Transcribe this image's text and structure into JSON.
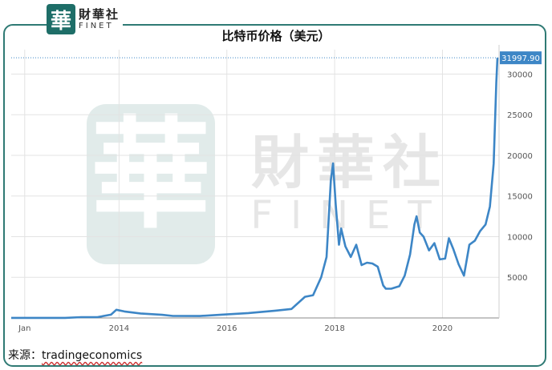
{
  "logo": {
    "mark": "華",
    "cn": "財華社",
    "en": "FINET"
  },
  "watermark": {
    "mark": "華",
    "cn": "財華社",
    "en": "FINET"
  },
  "source": {
    "label": "来源：",
    "value": "tradingeconomics"
  },
  "colors": {
    "line": "#3d86c6",
    "frame": "#2f7a74",
    "label_bg": "#3d86c6",
    "grid": "#e3e3e3"
  },
  "chart_data": {
    "type": "line",
    "title": "比特币价格（美元）",
    "xlabel": "",
    "ylabel": "",
    "x_ticks": [
      "Jan",
      "2014",
      "2016",
      "2018",
      "2020"
    ],
    "y_ticks": [
      5000,
      10000,
      15000,
      20000,
      25000,
      30000
    ],
    "ylim": [
      0,
      33000
    ],
    "last_value_label": "31997.90",
    "grid": true,
    "series": [
      {
        "x": [
          2012.0,
          2012.5,
          2013.0,
          2013.3,
          2013.6,
          2013.85,
          2013.95,
          2014.1,
          2014.4,
          2014.8,
          2015.0,
          2015.5,
          2015.9,
          2016.4,
          2016.9,
          2017.2,
          2017.45,
          2017.6,
          2017.75,
          2017.85,
          2017.93,
          2017.97,
          2018.02,
          2018.08,
          2018.12,
          2018.2,
          2018.3,
          2018.4,
          2018.5,
          2018.6,
          2018.7,
          2018.8,
          2018.9,
          2018.95,
          2019.05,
          2019.2,
          2019.3,
          2019.4,
          2019.48,
          2019.52,
          2019.58,
          2019.65,
          2019.75,
          2019.85,
          2019.95,
          2020.05,
          2020.12,
          2020.2,
          2020.3,
          2020.4,
          2020.5,
          2020.6,
          2020.7,
          2020.8,
          2020.88,
          2020.95,
          2021.0,
          2021.02
        ],
        "y": [
          5,
          10,
          14,
          100,
          100,
          400,
          1000,
          800,
          550,
          380,
          250,
          240,
          400,
          600,
          900,
          1100,
          2600,
          2800,
          5000,
          7500,
          17000,
          19000,
          14000,
          9000,
          11000,
          8800,
          7500,
          9000,
          6500,
          6800,
          6700,
          6300,
          4000,
          3600,
          3600,
          3900,
          5200,
          7800,
          11500,
          12500,
          10500,
          10000,
          8300,
          9200,
          7200,
          7300,
          9800,
          8500,
          6600,
          5200,
          9000,
          9500,
          10700,
          11500,
          13700,
          19000,
          29000,
          31997.9
        ]
      }
    ]
  }
}
